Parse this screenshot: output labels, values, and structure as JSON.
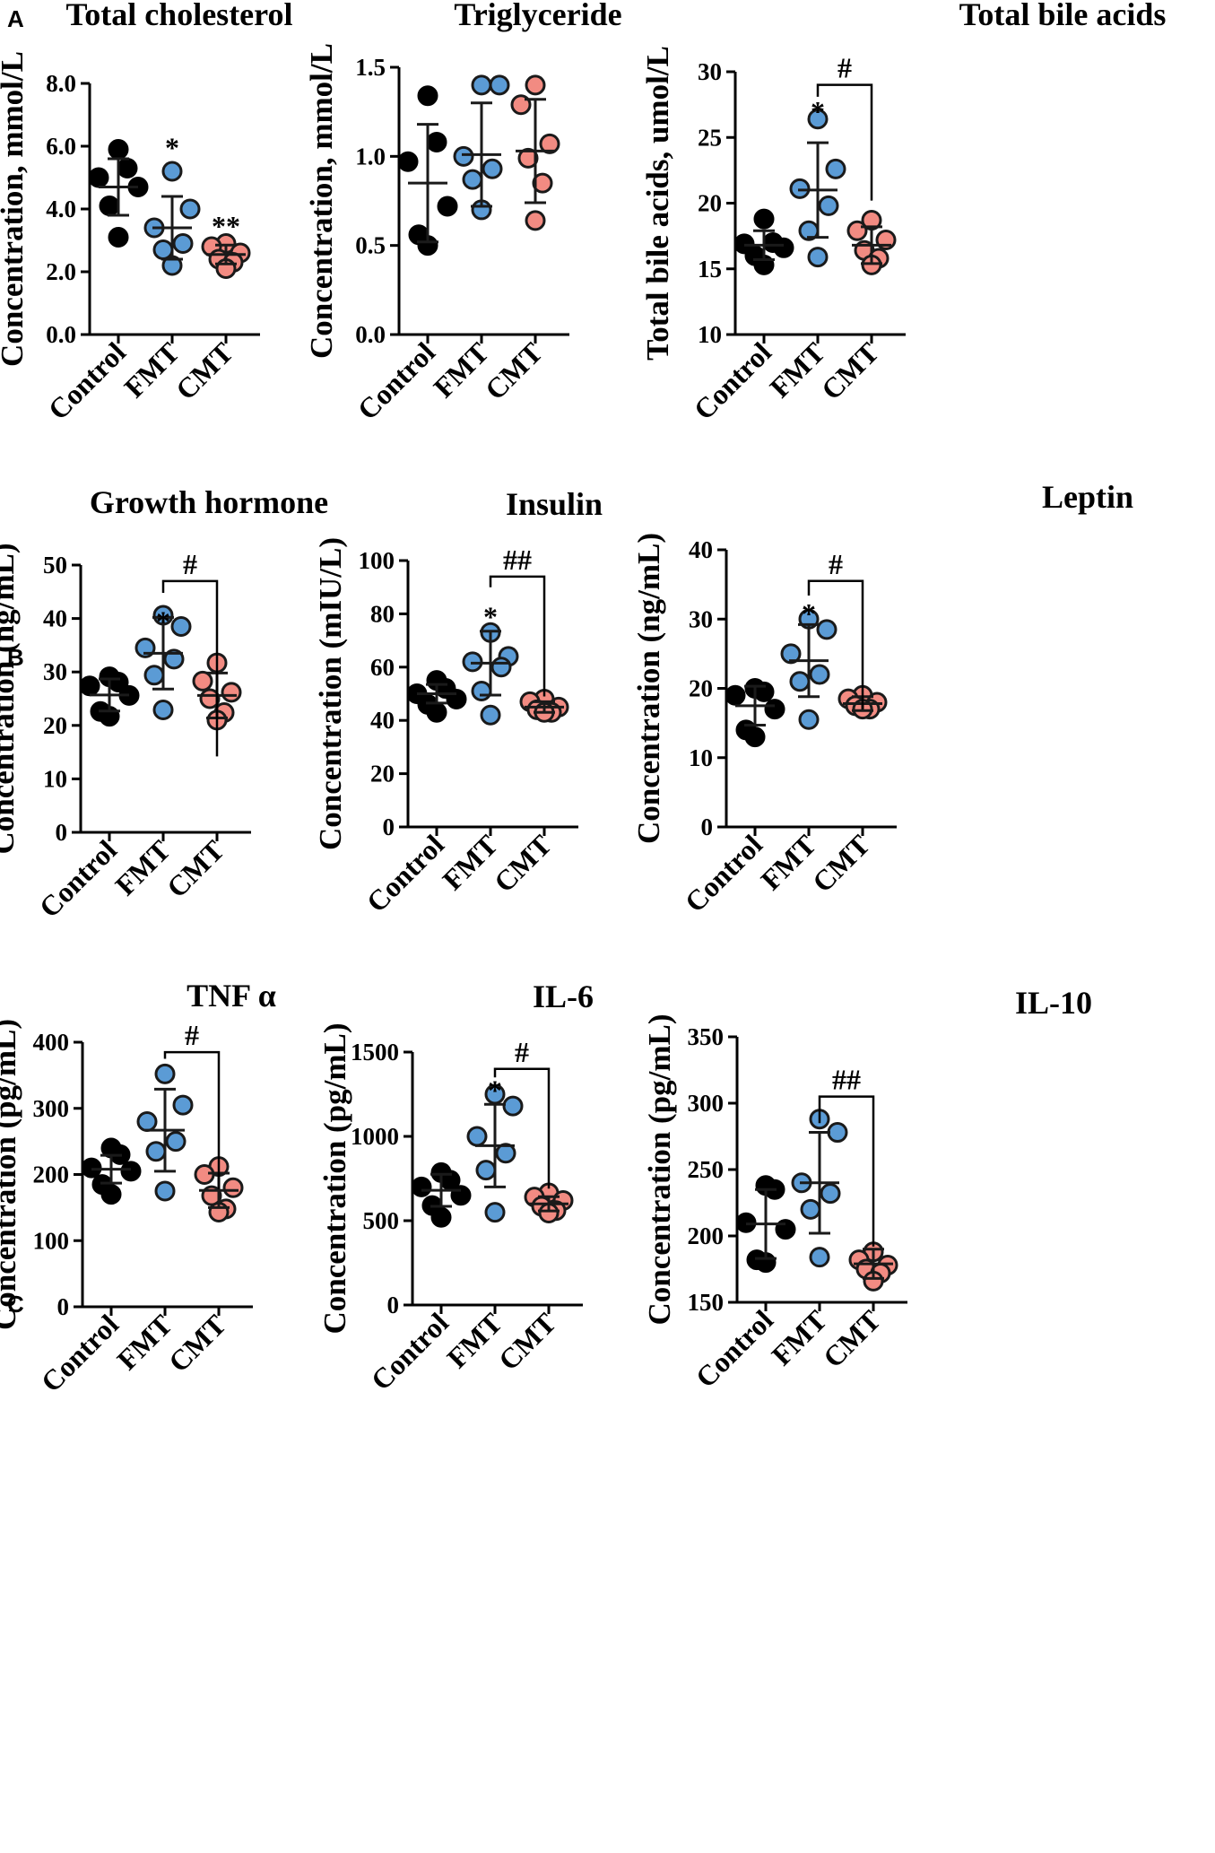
{
  "panel_labels": [
    "A",
    "B",
    "C"
  ],
  "colors": {
    "Control": "#000000",
    "FMT": "#5b9bd5",
    "CMT": "#f28b82",
    "axis": "#000000"
  },
  "chart_data": [
    {
      "type": "scatter",
      "panel": "A",
      "title": "Total cholesterol",
      "ylabel": "Concentration, mmol/L",
      "categories": [
        "Control",
        "FMT",
        "CMT"
      ],
      "ylim": [
        0,
        8
      ],
      "yticks": [
        0,
        2,
        4,
        6,
        8
      ],
      "ytick_labels": [
        "0.0",
        "2.0",
        "4.0",
        "6.0",
        "8.0"
      ],
      "points": {
        "Control": [
          5.9,
          5.3,
          5.0,
          4.7,
          4.1,
          3.1
        ],
        "FMT": [
          5.2,
          4.0,
          3.4,
          2.9,
          2.7,
          2.2
        ],
        "CMT": [
          2.9,
          2.8,
          2.6,
          2.4,
          2.3,
          2.1
        ]
      },
      "mean": [
        4.7,
        3.4,
        2.55
      ],
      "sd": [
        0.9,
        1.0,
        0.3
      ],
      "annotations": [
        {
          "group": "FMT",
          "text": "*",
          "y": 6.05
        },
        {
          "group": "CMT",
          "text": "**",
          "y": 3.55
        }
      ],
      "brackets": []
    },
    {
      "type": "scatter",
      "panel": "A",
      "title": "Triglyceride",
      "ylabel": "Concentration, mmol/L",
      "categories": [
        "Control",
        "FMT",
        "CMT"
      ],
      "ylim": [
        0,
        1.5
      ],
      "yticks": [
        0,
        0.5,
        1.0,
        1.5
      ],
      "ytick_labels": [
        "0.0",
        "0.5",
        "1.0",
        "1.5"
      ],
      "points": {
        "Control": [
          1.34,
          1.08,
          0.97,
          0.72,
          0.56,
          0.5
        ],
        "FMT": [
          1.4,
          1.4,
          1.0,
          0.93,
          0.87,
          0.7
        ],
        "CMT": [
          1.4,
          1.29,
          1.07,
          0.99,
          0.85,
          0.64
        ]
      },
      "mean": [
        0.85,
        1.01,
        1.03
      ],
      "sd": [
        0.33,
        0.29,
        0.29
      ],
      "annotations": [],
      "brackets": []
    },
    {
      "type": "scatter",
      "panel": "A",
      "title": "Total bile acids",
      "ylabel": "Total bile acids, umol/L",
      "categories": [
        "Control",
        "FMT",
        "CMT"
      ],
      "ylim": [
        10,
        30
      ],
      "yticks": [
        10,
        15,
        20,
        25,
        30
      ],
      "ytick_labels": [
        "10",
        "15",
        "20",
        "25",
        "30"
      ],
      "points": {
        "Control": [
          18.8,
          17.0,
          16.9,
          16.6,
          16.0,
          15.3
        ],
        "FMT": [
          26.4,
          22.6,
          21.1,
          19.8,
          17.9,
          15.9
        ],
        "CMT": [
          18.7,
          17.9,
          17.2,
          16.4,
          15.8,
          15.3
        ]
      },
      "mean": [
        16.8,
        21.0,
        16.8
      ],
      "sd": [
        1.1,
        3.6,
        1.4
      ],
      "annotations": [
        {
          "group": "FMT",
          "text": "*",
          "y": 27.2
        }
      ],
      "brackets": [
        {
          "from": "FMT",
          "to": "CMT",
          "text": "#",
          "y": 29.0,
          "left_drop": 0.9,
          "right_drop": 20.2
        }
      ]
    },
    {
      "type": "scatter",
      "panel": "B",
      "title": "Growth hormone",
      "ylabel": "Concentration (ng/mL)",
      "categories": [
        "Control",
        "FMT",
        "CMT"
      ],
      "ylim": [
        0,
        50
      ],
      "yticks": [
        0,
        10,
        20,
        30,
        40,
        50
      ],
      "ytick_labels": [
        "0",
        "10",
        "20",
        "30",
        "40",
        "50"
      ],
      "points": {
        "Control": [
          29.1,
          28.1,
          27.4,
          25.6,
          22.6,
          21.7
        ],
        "FMT": [
          40.6,
          38.5,
          34.5,
          32.4,
          29.4,
          22.9
        ],
        "CMT": [
          31.7,
          28.3,
          26.2,
          25.0,
          22.4,
          21.0
        ]
      },
      "mean": [
        25.7,
        33.5,
        25.6
      ],
      "sd": [
        3.0,
        6.7,
        4.2
      ],
      "annotations": [
        {
          "group": "FMT",
          "text": "*",
          "y": 40.0
        }
      ],
      "brackets": [
        {
          "from": "FMT",
          "to": "CMT",
          "text": "#",
          "y": 47.0,
          "left_drop": 2.2,
          "right_drop": 14.2
        }
      ]
    },
    {
      "type": "scatter",
      "panel": "B",
      "title": "Insulin",
      "ylabel": "Concentration (mIU/L)",
      "categories": [
        "Control",
        "FMT",
        "CMT"
      ],
      "ylim": [
        0,
        100
      ],
      "yticks": [
        0,
        20,
        40,
        60,
        80,
        100
      ],
      "ytick_labels": [
        "0",
        "20",
        "40",
        "60",
        "80",
        "100"
      ],
      "points": {
        "Control": [
          55.0,
          52.0,
          50.0,
          48.0,
          46.0,
          43.0
        ],
        "FMT": [
          73.0,
          64.0,
          62.0,
          60.0,
          51.0,
          42.0
        ],
        "CMT": [
          48.0,
          47.0,
          45.0,
          44.0,
          43.0,
          43.0
        ]
      },
      "mean": [
        50.0,
        61.5,
        45.0
      ],
      "sd": [
        3.5,
        12.0,
        2.0
      ],
      "annotations": [
        {
          "group": "FMT",
          "text": "*",
          "y": 80.0
        }
      ],
      "brackets": [
        {
          "from": "FMT",
          "to": "CMT",
          "text": "##",
          "y": 94.0,
          "left_drop": 4.0,
          "right_drop": 49.0
        }
      ]
    },
    {
      "type": "scatter",
      "panel": "B",
      "title": "Leptin",
      "ylabel": "Concentration (ng/mL)",
      "categories": [
        "Control",
        "FMT",
        "CMT"
      ],
      "ylim": [
        0,
        40
      ],
      "yticks": [
        0,
        10,
        20,
        30,
        40
      ],
      "ytick_labels": [
        "0",
        "10",
        "20",
        "30",
        "40"
      ],
      "points": {
        "Control": [
          20.0,
          19.5,
          19.0,
          17.0,
          14.0,
          13.0
        ],
        "FMT": [
          30.0,
          28.5,
          25.0,
          22.0,
          21.0,
          15.5
        ],
        "CMT": [
          19.0,
          18.5,
          18.0,
          17.5,
          17.0,
          17.0
        ]
      },
      "mean": [
        17.5,
        24.0,
        17.8
      ],
      "sd": [
        2.8,
        5.2,
        1.0
      ],
      "annotations": [
        {
          "group": "FMT",
          "text": "*",
          "y": 31.2
        }
      ],
      "brackets": [
        {
          "from": "FMT",
          "to": "CMT",
          "text": "#",
          "y": 35.5,
          "left_drop": 2.1,
          "right_drop": 17.0
        }
      ]
    },
    {
      "type": "scatter",
      "panel": "C",
      "title": "TNF α",
      "ylabel": "Concentration (pg/mL)",
      "categories": [
        "Control",
        "FMT",
        "CMT"
      ],
      "ylim": [
        0,
        400
      ],
      "yticks": [
        0,
        100,
        200,
        300,
        400
      ],
      "ytick_labels": [
        "0",
        "100",
        "200",
        "300",
        "400"
      ],
      "points": {
        "Control": [
          240.0,
          230.0,
          210.0,
          205.0,
          185.0,
          170.0
        ],
        "FMT": [
          352.0,
          305.0,
          280.0,
          250.0,
          235.0,
          175.0
        ],
        "CMT": [
          212.0,
          200.0,
          180.0,
          168.0,
          148.0,
          143.0
        ]
      },
      "mean": [
        208.0,
        267.0,
        176.0
      ],
      "sd": [
        21.0,
        62.0,
        26.0
      ],
      "annotations": [],
      "brackets": [
        {
          "from": "FMT",
          "to": "CMT",
          "text": "#",
          "y": 385.0,
          "left_drop": 10.0,
          "right_drop": 178.0
        }
      ]
    },
    {
      "type": "scatter",
      "panel": "C",
      "title": "IL-6",
      "ylabel": "Concentration (pg/mL)",
      "categories": [
        "Control",
        "FMT",
        "CMT"
      ],
      "ylim": [
        0,
        1500
      ],
      "yticks": [
        0,
        500,
        1000,
        1500
      ],
      "ytick_labels": [
        "0",
        "500",
        "1000",
        "1500"
      ],
      "points": {
        "Control": [
          785.0,
          740.0,
          700.0,
          650.0,
          590.0,
          520.0
        ],
        "FMT": [
          1250.0,
          1180.0,
          1000.0,
          900.0,
          800.0,
          550.0
        ],
        "CMT": [
          665.0,
          640.0,
          620.0,
          585.0,
          560.0,
          545.0
        ]
      },
      "mean": [
        680.0,
        945.0,
        600.0
      ],
      "sd": [
        95.0,
        245.0,
        42.0
      ],
      "annotations": [
        {
          "group": "FMT",
          "text": "*",
          "y": 1290.0
        }
      ],
      "brackets": [
        {
          "from": "FMT",
          "to": "CMT",
          "text": "#",
          "y": 1400.0,
          "left_drop": 50.0,
          "right_drop": 690.0
        }
      ]
    },
    {
      "type": "scatter",
      "panel": "C",
      "title": "IL-10",
      "ylabel": "Concentration (pg/mL)",
      "categories": [
        "Control",
        "FMT",
        "CMT"
      ],
      "ylim": [
        150,
        350
      ],
      "yticks": [
        150,
        200,
        250,
        300,
        350
      ],
      "ytick_labels": [
        "150",
        "200",
        "250",
        "300",
        "350"
      ],
      "points": {
        "Control": [
          238.0,
          235.0,
          210.0,
          205.0,
          182.0,
          180.0
        ],
        "FMT": [
          288.0,
          278.0,
          240.0,
          232.0,
          220.0,
          184.0
        ],
        "CMT": [
          188.0,
          182.0,
          178.0,
          175.0,
          172.0,
          166.0
        ]
      },
      "mean": [
        209.0,
        240.0,
        179.0
      ],
      "sd": [
        26.0,
        38.0,
        11.0
      ],
      "annotations": [],
      "brackets": [
        {
          "from": "FMT",
          "to": "CMT",
          "text": "##",
          "y": 305.0,
          "left_drop": 20.0,
          "right_drop": 192.0
        }
      ]
    }
  ]
}
